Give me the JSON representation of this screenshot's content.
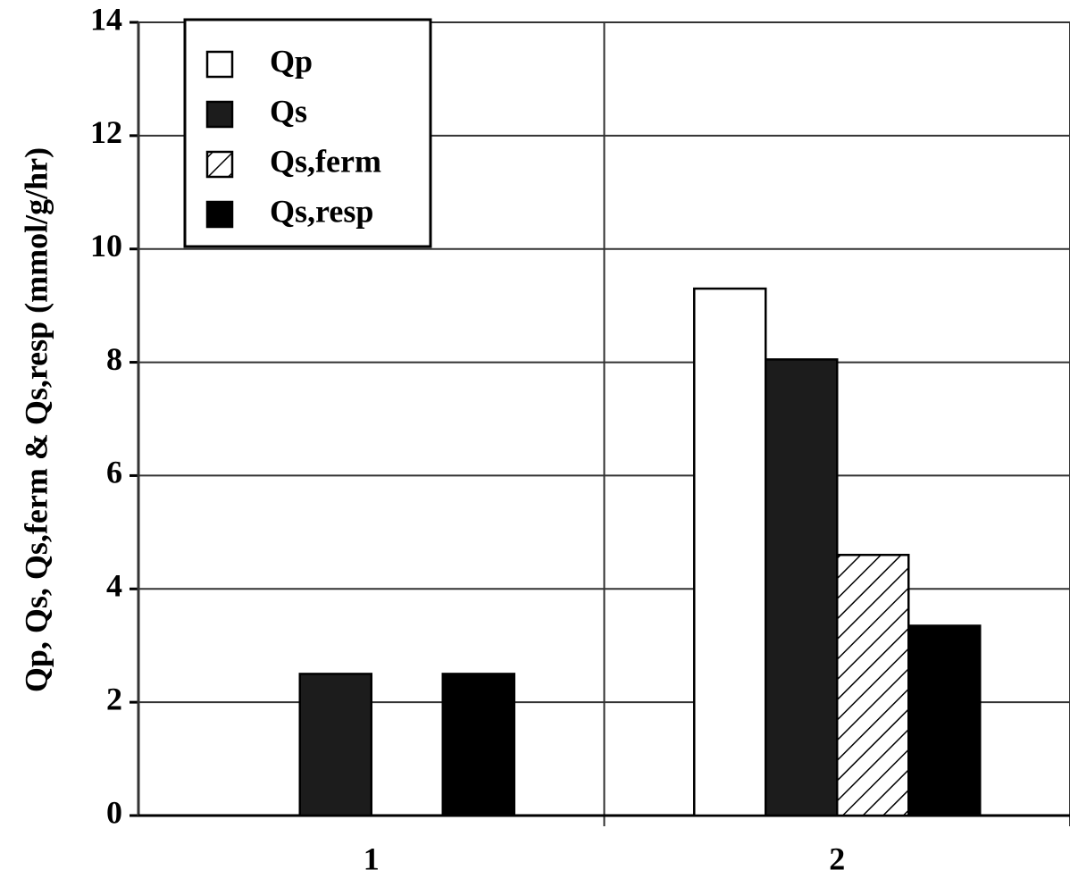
{
  "chart_data": {
    "type": "bar",
    "y_label": "Qp, Qs, Qs,ferm & Qs,resp (mmol/g/hr)",
    "categories": [
      "1",
      "2"
    ],
    "series": [
      {
        "name": "Qp",
        "color": "#ffffff",
        "values": [
          0,
          9.3
        ]
      },
      {
        "name": "Qs",
        "color": "#1c1c1c",
        "values": [
          2.5,
          8.05
        ]
      },
      {
        "name": "Qs,ferm",
        "color": "#ffffff",
        "pattern": "hatch",
        "values": [
          0,
          4.6
        ]
      },
      {
        "name": "Qs,resp",
        "color": "#000000",
        "values": [
          2.5,
          3.35
        ]
      }
    ],
    "ylim": [
      0,
      14
    ],
    "yticks": [
      0,
      2,
      4,
      6,
      8,
      10,
      12,
      14
    ],
    "grid": true,
    "legend": "top-left"
  }
}
